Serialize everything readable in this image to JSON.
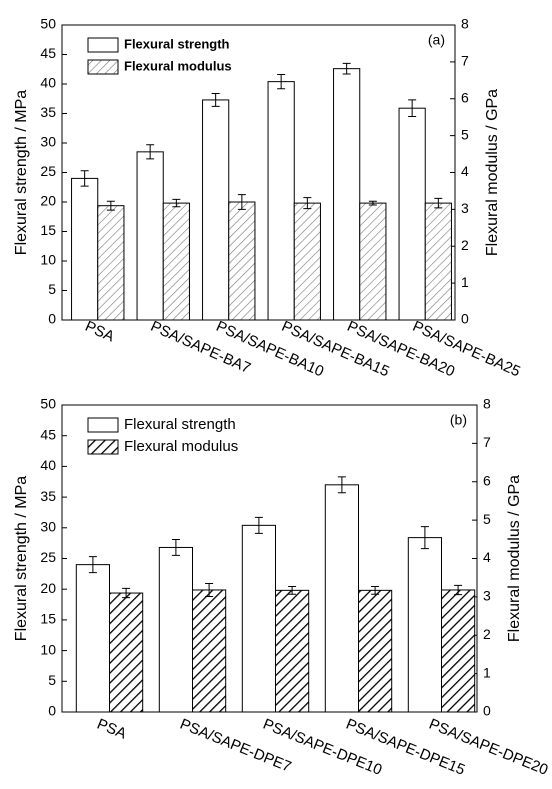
{
  "chart_data": [
    {
      "type": "bar",
      "annotation": "(a)",
      "categories": [
        "PSA",
        "PSA/SAPE-BA7",
        "PSA/SAPE-BA10",
        "PSA/SAPE-BA15",
        "PSA/SAPE-BA20",
        "PSA/SAPE-BA25"
      ],
      "series": [
        {
          "name": "Flexural strength",
          "color": "#ffffff",
          "values": [
            24.0,
            28.5,
            37.3,
            40.4,
            42.6,
            35.9
          ],
          "errors": [
            1.3,
            1.2,
            1.1,
            1.2,
            0.9,
            1.4
          ]
        },
        {
          "name": "Flexural modulus",
          "color": "#ffffff",
          "hatch": true,
          "axis": "y2",
          "values": [
            3.1,
            3.17,
            3.2,
            3.17,
            3.17,
            3.17
          ],
          "errors": [
            0.12,
            0.1,
            0.2,
            0.15,
            0.05,
            0.13
          ]
        }
      ],
      "ylabel": "Flexural strength / MPa",
      "y2label": "Flexural modulus / GPa",
      "ylim": [
        0,
        50
      ],
      "yticks": [
        0,
        5,
        10,
        15,
        20,
        25,
        30,
        35,
        40,
        45,
        50
      ],
      "y2lim": [
        0,
        8
      ],
      "y2ticks": [
        0,
        1,
        2,
        3,
        4,
        5,
        6,
        7,
        8
      ],
      "legend": "upper left"
    },
    {
      "type": "bar",
      "annotation": "(b)",
      "categories": [
        "PSA",
        "PSA/SAPE-DPE7",
        "PSA/SAPE-DPE10",
        "PSA/SAPE-DPE15",
        "PSA/SAPE-DPE20"
      ],
      "series": [
        {
          "name": "Flexural strength",
          "color": "#ffffff",
          "values": [
            24.0,
            26.8,
            30.4,
            37.0,
            28.4
          ],
          "errors": [
            1.3,
            1.3,
            1.3,
            1.3,
            1.8
          ]
        },
        {
          "name": "Flexural modulus",
          "color": "#ffffff",
          "hatch": true,
          "axis": "y2",
          "values": [
            3.1,
            3.18,
            3.17,
            3.17,
            3.18
          ],
          "errors": [
            0.12,
            0.17,
            0.1,
            0.1,
            0.12
          ]
        }
      ],
      "ylabel": "Flexural strength / MPa",
      "y2label": "Flexural modulus / GPa",
      "ylim": [
        0,
        50
      ],
      "yticks": [
        0,
        5,
        10,
        15,
        20,
        25,
        30,
        35,
        40,
        45,
        50
      ],
      "y2lim": [
        0,
        8
      ],
      "y2ticks": [
        0,
        1,
        2,
        3,
        4,
        5,
        6,
        7,
        8
      ],
      "legend": "upper left"
    }
  ]
}
